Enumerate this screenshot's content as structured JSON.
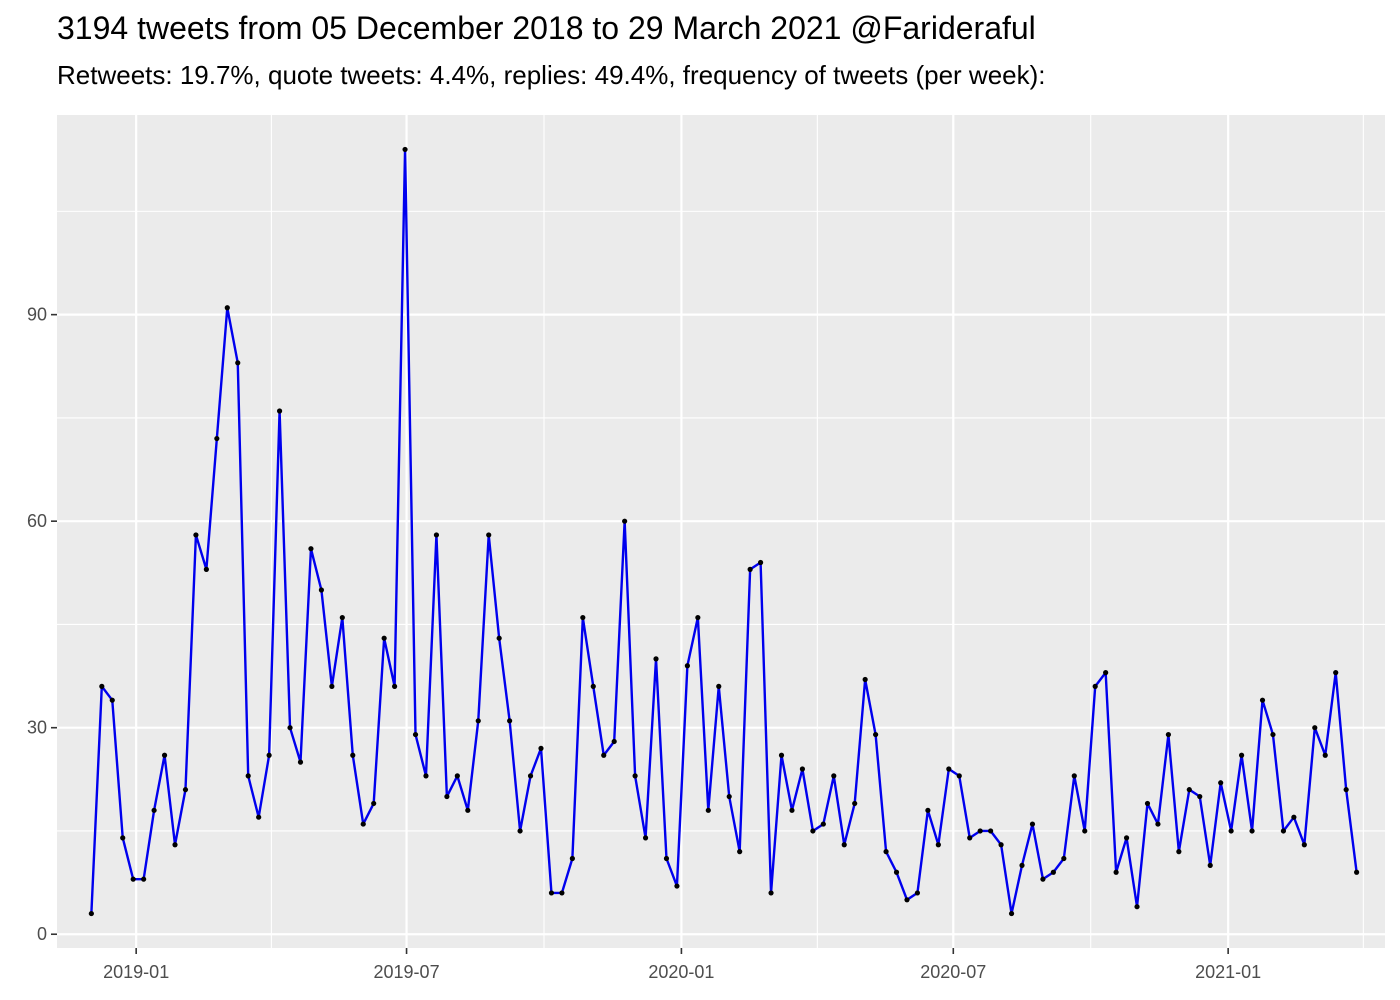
{
  "chart_data": {
    "type": "line",
    "title": "3194 tweets from 05 December 2018 to 29 March 2021 @Farideraful",
    "subtitle": "Retweets: 19.7%, quote tweets: 4.4%, replies: 49.4%, frequency of tweets (per week):",
    "xlabel": "",
    "ylabel": "",
    "x_axis_type": "date",
    "xlim": [
      "2018-11-09",
      "2021-04-16"
    ],
    "ylim": [
      -2,
      119
    ],
    "y_ticks": [
      0,
      30,
      60,
      90
    ],
    "y_tick_labels": [
      "0",
      "30",
      "60",
      "90"
    ],
    "x_ticks": [
      "2019-01-01",
      "2019-07-01",
      "2020-01-01",
      "2020-07-01",
      "2021-01-01"
    ],
    "x_tick_labels": [
      "2019-01",
      "2019-07",
      "2020-01",
      "2020-07",
      "2021-01"
    ],
    "grid": true,
    "legend": "none",
    "line_color": "#0000ee",
    "point_color": "#000000",
    "panel_background": "#ebebeb",
    "grid_color": "#ffffff",
    "series": [
      {
        "x": [
          "2018-12-02",
          "2018-12-09",
          "2018-12-16",
          "2018-12-23",
          "2018-12-30",
          "2019-01-06",
          "2019-01-13",
          "2019-01-20",
          "2019-01-27",
          "2019-02-03",
          "2019-02-10",
          "2019-02-17",
          "2019-02-24",
          "2019-03-03",
          "2019-03-10",
          "2019-03-17",
          "2019-03-24",
          "2019-03-31",
          "2019-04-07",
          "2019-04-14",
          "2019-04-21",
          "2019-04-28",
          "2019-05-05",
          "2019-05-12",
          "2019-05-19",
          "2019-05-26",
          "2019-06-02",
          "2019-06-09",
          "2019-06-16",
          "2019-06-23",
          "2019-06-30",
          "2019-07-07",
          "2019-07-14",
          "2019-07-21",
          "2019-07-28",
          "2019-08-04",
          "2019-08-11",
          "2019-08-18",
          "2019-08-25",
          "2019-09-01",
          "2019-09-08",
          "2019-09-15",
          "2019-09-22",
          "2019-09-29",
          "2019-10-06",
          "2019-10-13",
          "2019-10-20",
          "2019-10-27",
          "2019-11-03",
          "2019-11-10",
          "2019-11-17",
          "2019-11-24",
          "2019-12-01",
          "2019-12-08",
          "2019-12-15",
          "2019-12-22",
          "2019-12-29",
          "2020-01-05",
          "2020-01-12",
          "2020-01-19",
          "2020-01-26",
          "2020-02-02",
          "2020-02-09",
          "2020-02-16",
          "2020-02-23",
          "2020-03-01",
          "2020-03-08",
          "2020-03-15",
          "2020-03-22",
          "2020-03-29",
          "2020-04-05",
          "2020-04-12",
          "2020-04-19",
          "2020-04-26",
          "2020-05-03",
          "2020-05-10",
          "2020-05-17",
          "2020-05-24",
          "2020-05-31",
          "2020-06-07",
          "2020-06-14",
          "2020-06-21",
          "2020-06-28",
          "2020-07-05",
          "2020-07-12",
          "2020-07-19",
          "2020-07-26",
          "2020-08-02",
          "2020-08-09",
          "2020-08-16",
          "2020-08-23",
          "2020-08-30",
          "2020-09-06",
          "2020-09-13",
          "2020-09-20",
          "2020-09-27",
          "2020-10-04",
          "2020-10-11",
          "2020-10-18",
          "2020-10-25",
          "2020-11-01",
          "2020-11-08",
          "2020-11-15",
          "2020-11-22",
          "2020-11-29",
          "2020-12-06",
          "2020-12-13",
          "2020-12-20",
          "2020-12-27",
          "2021-01-03",
          "2021-01-10",
          "2021-01-17",
          "2021-01-24",
          "2021-01-31",
          "2021-02-07",
          "2021-02-14",
          "2021-02-21",
          "2021-02-28",
          "2021-03-07",
          "2021-03-14",
          "2021-03-21",
          "2021-03-28"
        ],
        "y": [
          3,
          36,
          34,
          14,
          8,
          8,
          18,
          26,
          13,
          21,
          58,
          53,
          72,
          91,
          83,
          23,
          17,
          26,
          76,
          30,
          25,
          56,
          50,
          36,
          46,
          26,
          16,
          19,
          43,
          36,
          114,
          29,
          23,
          58,
          20,
          23,
          18,
          31,
          58,
          43,
          31,
          15,
          23,
          27,
          6,
          6,
          11,
          46,
          36,
          26,
          28,
          60,
          23,
          14,
          40,
          11,
          7,
          39,
          46,
          18,
          36,
          20,
          12,
          53,
          54,
          6,
          26,
          18,
          24,
          15,
          16,
          23,
          13,
          19,
          37,
          29,
          12,
          9,
          5,
          6,
          18,
          13,
          24,
          23,
          14,
          15,
          15,
          13,
          3,
          10,
          16,
          8,
          9,
          11,
          23,
          15,
          36,
          38,
          9,
          14,
          4,
          19,
          16,
          29,
          12,
          21,
          20,
          10,
          22,
          15,
          26,
          15,
          34,
          29,
          15,
          17,
          13,
          30,
          26,
          38,
          21,
          9
        ]
      }
    ]
  }
}
